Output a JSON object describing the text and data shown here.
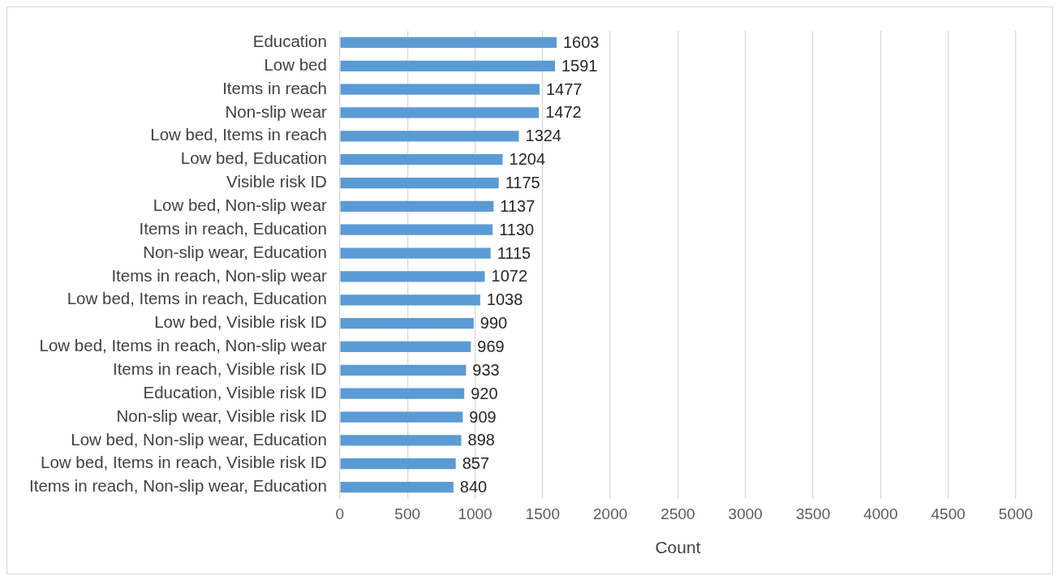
{
  "chart_data": {
    "type": "bar",
    "orientation": "horizontal",
    "xlabel": "Count",
    "categories": [
      "Education",
      "Low bed",
      "Items in reach",
      "Non-slip wear",
      "Low bed, Items in reach",
      "Low bed, Education",
      "Visible risk ID",
      "Low bed, Non-slip wear",
      "Items in reach, Education",
      "Non-slip wear, Education",
      "Items in reach, Non-slip wear",
      "Low bed, Items in reach, Education",
      "Low bed, Visible risk ID",
      "Low bed, Items in reach, Non-slip wear",
      "Items in reach, Visible risk ID",
      "Education, Visible risk ID",
      "Non-slip wear, Visible risk ID",
      "Low bed, Non-slip wear, Education",
      "Low bed, Items in reach, Visible risk ID",
      "Items in reach, Non-slip wear, Education"
    ],
    "values": [
      1603,
      1591,
      1477,
      1472,
      1324,
      1204,
      1175,
      1137,
      1130,
      1115,
      1072,
      1038,
      990,
      969,
      933,
      920,
      909,
      898,
      857,
      840
    ],
    "color": "#5b9bd5",
    "xlim": [
      0,
      5000
    ],
    "xticks": [
      0,
      500,
      1000,
      1500,
      2000,
      2500,
      3000,
      3500,
      4000,
      4500,
      5000
    ],
    "grid": "x",
    "legend": false,
    "data_labels": true
  }
}
